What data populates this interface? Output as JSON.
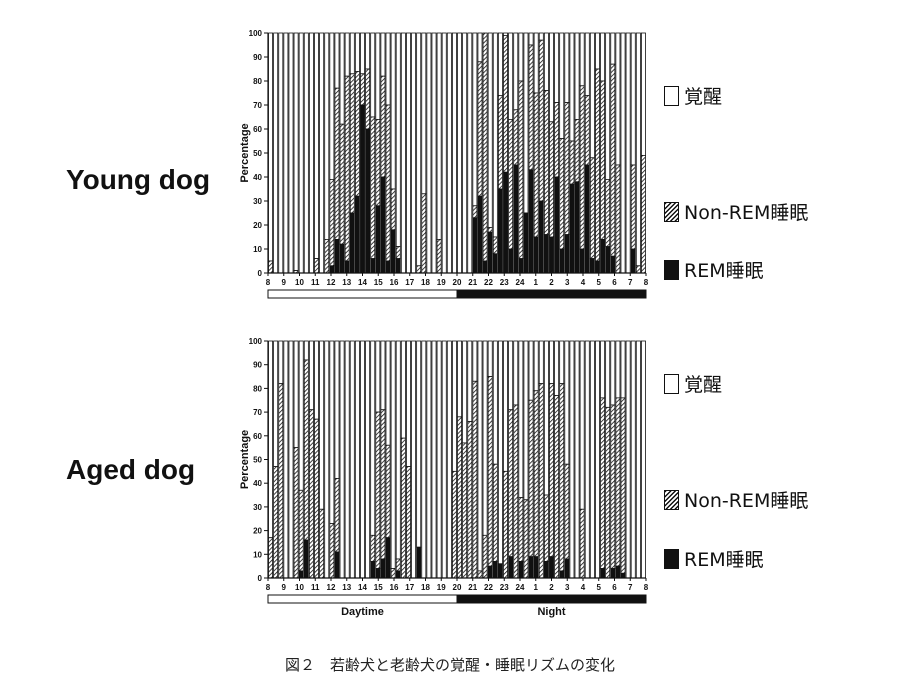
{
  "labels": {
    "young_dog": "Young dog",
    "aged_dog": "Aged dog",
    "ylabel": "Percentage",
    "daytime": "Daytime",
    "night": "Night"
  },
  "legend": {
    "wake": "覚醒",
    "nonrem": "Non-REM睡眠",
    "rem": "REM睡眠"
  },
  "caption": "図２　若齢犬と老齢犬の覚醒・睡眠リズムの変化",
  "chart_data": [
    {
      "type": "bar",
      "stacked": true,
      "panel": "Young dog",
      "ylabel": "Percentage",
      "ylim": [
        0,
        100
      ],
      "yticks": [
        0,
        10,
        20,
        30,
        40,
        50,
        60,
        70,
        80,
        90,
        100
      ],
      "xticks": [
        "8",
        "9",
        "10",
        "11",
        "12",
        "13",
        "14",
        "15",
        "16",
        "17",
        "18",
        "19",
        "20",
        "21",
        "22",
        "23",
        "24",
        "1",
        "2",
        "3",
        "4",
        "5",
        "6",
        "7",
        "8"
      ],
      "bars_per_hour": 2,
      "series": [
        {
          "name": "REM睡眠",
          "color": "#111111",
          "values": [
            0,
            0,
            0,
            0,
            0,
            0,
            0,
            0,
            0,
            0,
            0,
            0,
            3,
            14,
            12,
            5,
            25,
            32,
            70,
            60,
            6,
            28,
            40,
            5,
            18,
            6,
            0,
            0,
            0,
            0,
            0,
            0,
            0,
            0,
            0,
            0,
            0,
            0,
            0,
            0,
            23,
            32,
            5,
            17,
            8,
            35,
            42,
            10,
            45,
            6,
            25,
            43,
            15,
            30,
            16,
            15,
            40,
            10,
            16,
            37,
            38,
            10,
            45,
            6,
            5,
            14,
            11,
            7,
            0,
            0,
            0,
            10,
            0,
            0
          ]
        },
        {
          "name": "Non-REM睡眠",
          "color": "hatch",
          "values": [
            5,
            0,
            0,
            0,
            0,
            1,
            0,
            0,
            0,
            6,
            0,
            14,
            36,
            63,
            50,
            77,
            58,
            52,
            13,
            25,
            59,
            36,
            42,
            65,
            17,
            5,
            0,
            0,
            0,
            3,
            33,
            0,
            0,
            14,
            0,
            0,
            0,
            0,
            0,
            0,
            5,
            56,
            95,
            2,
            7,
            39,
            57,
            54,
            23,
            74,
            0,
            52,
            60,
            67,
            60,
            48,
            31,
            46,
            55,
            18,
            26,
            68,
            29,
            42,
            80,
            66,
            28,
            80,
            45,
            0,
            0,
            35,
            3,
            49
          ]
        },
        {
          "name": "覚醒",
          "color": "#ffffff"
        }
      ]
    },
    {
      "type": "bar",
      "stacked": true,
      "panel": "Aged dog",
      "ylabel": "Percentage",
      "ylim": [
        0,
        100
      ],
      "yticks": [
        0,
        10,
        20,
        30,
        40,
        50,
        60,
        70,
        80,
        90,
        100
      ],
      "xticks": [
        "8",
        "9",
        "10",
        "11",
        "12",
        "13",
        "14",
        "15",
        "16",
        "17",
        "18",
        "19",
        "20",
        "21",
        "22",
        "23",
        "24",
        "1",
        "2",
        "3",
        "4",
        "5",
        "6",
        "7",
        "8"
      ],
      "bars_per_hour": 2,
      "series": [
        {
          "name": "REM睡眠",
          "color": "#111111",
          "values": [
            0,
            0,
            0,
            0,
            0,
            0,
            3,
            16,
            0,
            0,
            0,
            0,
            0,
            11,
            0,
            0,
            0,
            0,
            0,
            0,
            7,
            4,
            8,
            17,
            0,
            3,
            0,
            0,
            0,
            13,
            0,
            0,
            0,
            0,
            0,
            0,
            0,
            0,
            0,
            0,
            0,
            0,
            0,
            5,
            7,
            6,
            0,
            9,
            0,
            7,
            0,
            9,
            9,
            0,
            7,
            9,
            0,
            3,
            8,
            0,
            0,
            0,
            0,
            0,
            0,
            4,
            0,
            4,
            5,
            2,
            0,
            0,
            0,
            0
          ]
        },
        {
          "name": "Non-REM睡眠",
          "color": "hatch",
          "values": [
            17,
            47,
            82,
            0,
            0,
            55,
            34,
            76,
            71,
            67,
            29,
            0,
            23,
            31,
            0,
            0,
            0,
            0,
            0,
            0,
            11,
            66,
            63,
            39,
            4,
            5,
            59,
            47,
            0,
            0,
            0,
            0,
            0,
            0,
            0,
            0,
            45,
            68,
            57,
            66,
            83,
            3,
            18,
            80,
            41,
            0,
            45,
            62,
            73,
            27,
            33,
            66,
            70,
            82,
            28,
            73,
            77,
            79,
            40,
            0,
            0,
            29,
            0,
            0,
            0,
            72,
            72,
            69,
            71,
            74,
            0,
            0,
            0,
            0
          ]
        },
        {
          "name": "覚醒",
          "color": "#ffffff"
        }
      ]
    }
  ]
}
